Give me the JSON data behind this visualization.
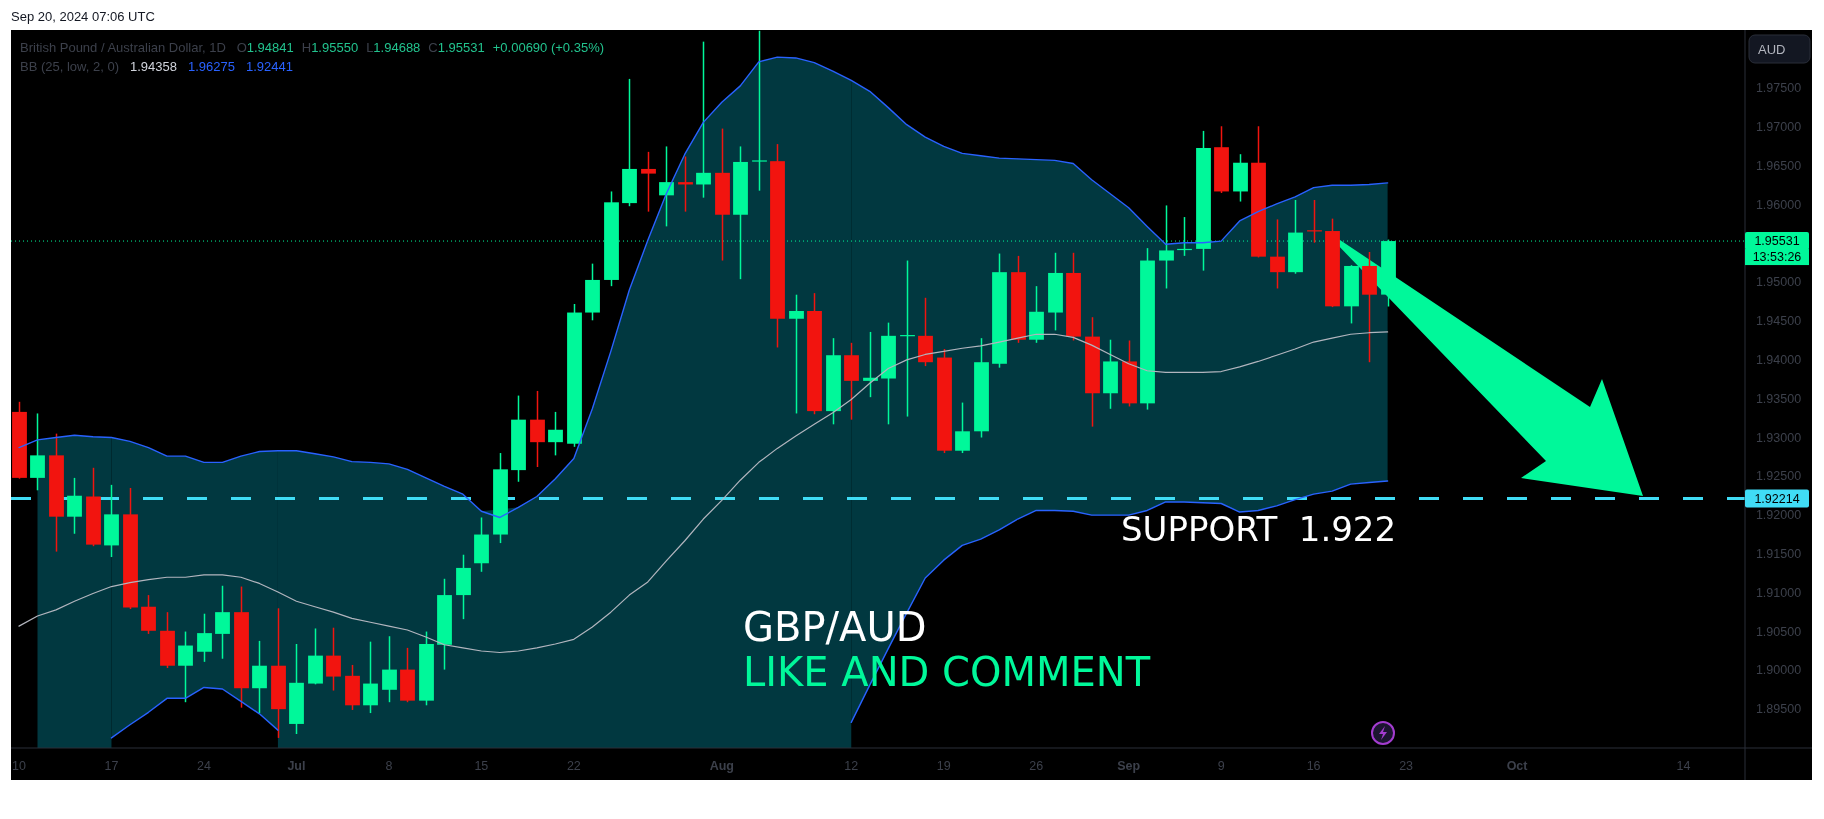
{
  "chart_data": {
    "type": "candlestick",
    "title": "British Pound / Australian Dollar, 1D",
    "annotations": [
      "Sep 20, 2024 07:06 UTC",
      "O1.94841",
      "H1.95550",
      "L1.94688",
      "C1.95531",
      "+0.00690 (+0.35%)",
      "BB (25, low, 2, 0)",
      "1.94358",
      "1.96275",
      "1.92441",
      "AUD",
      "13:53:26",
      "GBP/AUD",
      "LIKE AND COMMENT",
      {
        "text": "SUPPORT  1.922",
        "y": 1.92214
      }
    ],
    "categories": [
      "10",
      null,
      null,
      null,
      null,
      "17",
      null,
      null,
      null,
      null,
      "24",
      null,
      null,
      null,
      null,
      "Jul",
      null,
      null,
      null,
      null,
      "8",
      null,
      null,
      null,
      null,
      "15",
      null,
      null,
      null,
      null,
      "22",
      null,
      null,
      null,
      null,
      null,
      null,
      null,
      "Aug",
      null,
      null,
      null,
      null,
      null,
      null,
      "12",
      null,
      null,
      null,
      null,
      "19",
      null,
      null,
      null,
      null,
      "26",
      null,
      null,
      null,
      null,
      "Sep",
      null,
      null,
      null,
      null,
      "9",
      null,
      null,
      null,
      null,
      "16",
      null,
      null,
      null,
      null,
      "23",
      null,
      null,
      null,
      null,
      null,
      "Oct",
      null,
      null,
      null,
      null,
      null,
      null,
      null,
      null,
      "14",
      null,
      null,
      null
    ],
    "ohlc": [
      [
        1.9333,
        1.9346,
        1.9247,
        1.9248
      ],
      [
        1.9248,
        1.9331,
        1.9232,
        1.9277
      ],
      [
        1.9277,
        1.9305,
        1.9153,
        1.9198
      ],
      [
        1.9198,
        1.9248,
        1.9176,
        1.9225
      ],
      [
        1.9224,
        1.9261,
        1.916,
        1.9162
      ],
      [
        1.9161,
        1.9239,
        1.9146,
        1.9201
      ],
      [
        1.9201,
        1.9235,
        1.9079,
        1.9081
      ],
      [
        1.9082,
        1.9097,
        1.9047,
        1.9051
      ],
      [
        1.9051,
        1.9075,
        1.9003,
        1.9006
      ],
      [
        1.9006,
        1.905,
        1.8959,
        1.9032
      ],
      [
        1.9024,
        1.9073,
        1.9011,
        1.9048
      ],
      [
        1.9047,
        1.9109,
        1.9015,
        1.9075
      ],
      [
        1.9075,
        1.9108,
        1.8952,
        1.8977
      ],
      [
        1.8977,
        1.9038,
        1.8945,
        1.9006
      ],
      [
        1.9006,
        1.908,
        1.8913,
        1.895
      ],
      [
        1.8931,
        1.9034,
        1.8918,
        1.8984
      ],
      [
        1.8983,
        1.9054,
        1.8982,
        1.9019
      ],
      [
        1.9019,
        1.9055,
        1.8974,
        1.8992
      ],
      [
        1.8993,
        1.9007,
        1.8949,
        1.8955
      ],
      [
        1.8955,
        1.9037,
        1.8945,
        1.8983
      ],
      [
        1.8975,
        1.9044,
        1.8959,
        1.9001
      ],
      [
        1.9001,
        1.9029,
        1.8959,
        1.8961
      ],
      [
        1.8961,
        1.905,
        1.8955,
        1.9034
      ],
      [
        1.9033,
        1.9118,
        1.9001,
        1.9097
      ],
      [
        1.9097,
        1.9149,
        1.9066,
        1.9132
      ],
      [
        1.9138,
        1.9197,
        1.9127,
        1.9175
      ],
      [
        1.9175,
        1.928,
        1.9164,
        1.9259
      ],
      [
        1.9258,
        1.9354,
        1.9243,
        1.9323
      ],
      [
        1.9323,
        1.936,
        1.9262,
        1.9294
      ],
      [
        1.9294,
        1.9333,
        1.9277,
        1.931
      ],
      [
        1.9292,
        1.9472,
        1.9288,
        1.9461
      ],
      [
        1.9461,
        1.9524,
        1.9451,
        1.9503
      ],
      [
        1.9503,
        1.9617,
        1.9495,
        1.9603
      ],
      [
        1.9602,
        1.9762,
        1.9598,
        1.9646
      ],
      [
        1.9646,
        1.9668,
        1.9591,
        1.964
      ],
      [
        1.9612,
        1.9675,
        1.9572,
        1.9629
      ],
      [
        1.9629,
        1.9662,
        1.9591,
        1.9626
      ],
      [
        1.9626,
        1.981,
        1.9609,
        1.9641
      ],
      [
        1.9641,
        1.9698,
        1.9528,
        1.9587
      ],
      [
        1.9587,
        1.9675,
        1.9504,
        1.9655
      ],
      [
        1.9656,
        1.9824,
        1.9618,
        1.9657
      ],
      [
        1.9656,
        1.9678,
        1.9416,
        1.9453
      ],
      [
        1.9453,
        1.9484,
        1.9331,
        1.9463
      ],
      [
        1.9463,
        1.9486,
        1.933,
        1.9334
      ],
      [
        1.9334,
        1.9428,
        1.9317,
        1.9406
      ],
      [
        1.9406,
        1.9422,
        1.9323,
        1.9373
      ],
      [
        1.9373,
        1.9436,
        1.9352,
        1.9377
      ],
      [
        1.9376,
        1.9448,
        1.9317,
        1.9431
      ],
      [
        1.9431,
        1.9528,
        1.9327,
        1.9432
      ],
      [
        1.9431,
        1.948,
        1.9392,
        1.9397
      ],
      [
        1.9403,
        1.9414,
        1.928,
        1.9283
      ],
      [
        1.9283,
        1.9345,
        1.928,
        1.9308
      ],
      [
        1.9308,
        1.9428,
        1.93,
        1.9397
      ],
      [
        1.9395,
        1.9537,
        1.939,
        1.9513
      ],
      [
        1.9513,
        1.9534,
        1.9422,
        1.9426
      ],
      [
        1.9426,
        1.9495,
        1.9422,
        1.9462
      ],
      [
        1.9461,
        1.9538,
        1.9438,
        1.9512
      ],
      [
        1.9512,
        1.9538,
        1.9425,
        1.943
      ],
      [
        1.943,
        1.9455,
        1.9314,
        1.9357
      ],
      [
        1.9357,
        1.9426,
        1.9337,
        1.9398
      ],
      [
        1.9398,
        1.9425,
        1.934,
        1.9344
      ],
      [
        1.9344,
        1.9544,
        1.9336,
        1.9528
      ],
      [
        1.9528,
        1.9599,
        1.9492,
        1.9541
      ],
      [
        1.9542,
        1.9584,
        1.9534,
        1.9543
      ],
      [
        1.9543,
        1.9695,
        1.9515,
        1.9673
      ],
      [
        1.9674,
        1.9701,
        1.9615,
        1.9617
      ],
      [
        1.9617,
        1.9665,
        1.9604,
        1.9654
      ],
      [
        1.9654,
        1.9701,
        1.9532,
        1.9533
      ],
      [
        1.9533,
        1.9581,
        1.9492,
        1.9513
      ],
      [
        1.9513,
        1.9606,
        1.9511,
        1.9564
      ],
      [
        1.9567,
        1.9606,
        1.9551,
        1.9566
      ],
      [
        1.9566,
        1.9582,
        1.9468,
        1.9469
      ],
      [
        1.9469,
        1.9522,
        1.9447,
        1.9521
      ],
      [
        1.9521,
        1.9539,
        1.9397,
        1.9484
      ],
      [
        1.94841,
        1.9555,
        1.94688,
        1.95531
      ],
      null,
      null,
      null,
      null,
      null,
      null,
      null,
      null,
      null,
      null,
      null,
      null,
      null,
      null,
      null,
      null,
      null,
      null,
      null
    ],
    "colors": [
      "#f2140f",
      "#00f89a",
      "#f2140f",
      "#00f89a",
      "#f2140f",
      "#00f89a",
      "#f2140f",
      "#f2140f",
      "#f2140f",
      "#00f89a",
      "#00f89a",
      "#00f89a",
      "#f2140f",
      "#00f89a",
      "#f2140f",
      "#00f89a",
      "#00f89a",
      "#f2140f",
      "#f2140f",
      "#00f89a",
      "#00f89a",
      "#f2140f",
      "#00f89a",
      "#00f89a",
      "#00f89a",
      "#00f89a",
      "#00f89a",
      "#00f89a",
      "#f2140f",
      "#00f89a",
      "#00f89a",
      "#00f89a",
      "#00f89a",
      "#00f89a",
      "#f2140f",
      "#00f89a",
      "#f2140f",
      "#00f89a",
      "#f2140f",
      "#00f89a",
      "#00f89a",
      "#f2140f",
      "#00f89a",
      "#f2140f",
      "#00f89a",
      "#f2140f",
      "#00f89a",
      "#00f89a",
      "#00f89a",
      "#f2140f",
      "#f2140f",
      "#00f89a",
      "#00f89a",
      "#00f89a",
      "#f2140f",
      "#00f89a",
      "#00f89a",
      "#f2140f",
      "#f2140f",
      "#00f89a",
      "#f2140f",
      "#00f89a",
      "#00f89a",
      "#00f89a",
      "#00f89a",
      "#f2140f",
      "#00f89a",
      "#f2140f",
      "#f2140f",
      "#00f89a",
      "#f2140f",
      "#f2140f",
      "#00f89a",
      "#f2140f",
      "#00f89a",
      null,
      null,
      null,
      null,
      null,
      null,
      null,
      null,
      null,
      null,
      null,
      null,
      null,
      null,
      null,
      null,
      null,
      null,
      null
    ],
    "series": [
      {
        "type": "line",
        "color": "#b2b5be",
        "values": [
          1.9057,
          1.907,
          1.9078,
          1.9089,
          1.9099,
          1.9108,
          1.9113,
          1.9117,
          1.912,
          1.912,
          1.9123,
          1.9123,
          1.912,
          1.9112,
          1.9101,
          1.9089,
          1.9082,
          1.9075,
          1.9067,
          1.9062,
          1.9057,
          1.9052,
          1.9043,
          1.9033,
          1.9029,
          1.9025,
          1.9023,
          1.9025,
          1.9029,
          1.9034,
          1.904,
          1.9056,
          1.9075,
          1.9097,
          1.9114,
          1.9141,
          1.9167,
          1.9195,
          1.9219,
          1.9245,
          1.9268,
          1.9286,
          1.9302,
          1.9317,
          1.9332,
          1.9349,
          1.937,
          1.9389,
          1.94,
          1.9407,
          1.9411,
          1.9415,
          1.9418,
          1.9423,
          1.9428,
          1.9433,
          1.9433,
          1.9429,
          1.9419,
          1.9407,
          1.9395,
          1.9386,
          1.9384,
          1.9384,
          1.9384,
          1.9385,
          1.9391,
          1.9398,
          1.9406,
          1.9414,
          1.9423,
          1.9428,
          1.9433,
          1.9435,
          1.9436,
          null,
          null,
          null,
          null,
          null,
          null,
          null,
          null,
          null,
          null,
          null,
          null,
          null,
          null,
          null,
          null,
          null,
          null,
          null
        ],
        "upper": [
          null,
          null,
          null,
          null,
          null,
          1.93,
          1.9295,
          1.9287,
          1.9276,
          1.9276,
          1.9268,
          1.9268,
          1.9276,
          1.9282,
          1.9283,
          null,
          null,
          null,
          null,
          null,
          null,
          null,
          null,
          null,
          null,
          null,
          null,
          null,
          null,
          null,
          null,
          null,
          null,
          null,
          null,
          null,
          null,
          null,
          null,
          null,
          null,
          null,
          null,
          null,
          null,
          1.976,
          1.9746,
          1.9725,
          1.9703,
          1.9687,
          1.9675,
          1.9666,
          1.9663,
          1.966,
          1.9659,
          1.9658,
          1.9657,
          1.9653,
          1.9632,
          1.9614,
          1.9596,
          1.9572,
          1.9549,
          1.9551,
          1.9551,
          1.9553,
          1.9579,
          1.9591,
          1.9601,
          1.961,
          1.9622,
          1.9625,
          1.9625,
          1.9626,
          1.9628,
          null,
          null,
          null,
          null,
          null,
          null,
          null,
          null,
          null,
          null,
          null,
          null,
          null,
          null,
          null,
          null,
          null,
          null,
          null
        ],
        "lower": [
          null,
          null,
          null,
          null,
          null,
          1.8913,
          1.893,
          1.8946,
          1.8964,
          1.8964,
          1.8978,
          1.8976,
          1.896,
          1.8944,
          1.8923,
          null,
          null,
          null,
          null,
          null,
          null,
          null,
          null,
          null,
          null,
          null,
          null,
          null,
          null,
          null,
          null,
          null,
          null,
          null,
          null,
          null,
          null,
          null,
          null,
          null,
          null,
          null,
          null,
          null,
          null,
          1.8933,
          1.8981,
          1.9028,
          1.9074,
          1.9119,
          1.9142,
          1.9161,
          1.9169,
          1.9181,
          1.9195,
          1.9206,
          1.9206,
          1.9205,
          1.92,
          1.92,
          1.92,
          1.9206,
          1.9217,
          1.9217,
          1.9216,
          1.9215,
          1.9204,
          1.9206,
          1.9212,
          1.922,
          1.9227,
          1.9231,
          1.924,
          1.9242,
          1.9244,
          null,
          null,
          null,
          null,
          null,
          null,
          null,
          null,
          null,
          null,
          null,
          null,
          null,
          null,
          null,
          null,
          null,
          null,
          null
        ]
      },
      {
        "type": "area",
        "color": "#013840",
        "values": [
          null,
          1.9297,
          1.93,
          1.9303,
          1.9301,
          1.93,
          null,
          null,
          null,
          null,
          null,
          null,
          null,
          null,
          1.9283,
          1.9283,
          1.9279,
          1.9275,
          1.9269,
          1.9268,
          1.9266,
          1.9259,
          1.9248,
          1.9237,
          1.9227,
          1.9205,
          null,
          1.921,
          1.9224,
          1.9247,
          1.9273,
          1.9337,
          1.9411,
          1.949,
          1.9554,
          1.9614,
          1.9665,
          1.9706,
          1.9732,
          1.9753,
          1.9784,
          1.979,
          1.9789,
          1.9783,
          1.9772,
          1.976,
          null,
          null,
          null,
          null,
          null,
          null,
          null,
          null,
          null,
          null,
          null,
          null,
          null,
          null,
          null,
          null,
          null,
          null,
          null,
          null,
          null,
          null,
          null,
          null,
          null,
          null,
          null,
          null,
          null,
          null,
          null,
          null,
          null,
          null,
          null,
          null,
          null,
          null,
          null,
          null,
          null,
          null,
          null,
          null,
          null,
          null,
          null,
          null
        ]
      },
      {
        "type": "line",
        "color": "#2962ff",
        "values": [
          1.9287,
          1.9297,
          1.93,
          1.9303,
          1.9301,
          1.93,
          1.9295,
          1.9287,
          1.9276,
          1.9276,
          1.9268,
          1.9268,
          1.9276,
          1.9282,
          1.9283,
          1.9283,
          1.9279,
          1.9275,
          1.9269,
          1.9268,
          1.9266,
          1.9259,
          1.9248,
          1.9237,
          1.9227,
          1.9205,
          1.9197,
          1.921,
          1.9224,
          1.9247,
          1.9273,
          1.9337,
          1.9411,
          1.949,
          1.9554,
          1.9614,
          1.9665,
          1.9706,
          1.9732,
          1.9753,
          1.9784,
          1.979,
          1.9789,
          1.9783,
          1.9772,
          1.976,
          1.9746,
          1.9725,
          1.9703,
          1.9687,
          1.9675,
          1.9666,
          1.9663,
          1.966,
          1.9659,
          1.9658,
          1.9657,
          1.9653,
          1.9632,
          1.9614,
          1.9596,
          1.9572,
          1.9549,
          1.9551,
          1.9551,
          1.9553,
          1.9579,
          1.9591,
          1.9601,
          1.961,
          1.9622,
          1.9625,
          1.9625,
          1.9626,
          1.9628,
          null,
          null,
          null,
          null,
          null,
          null,
          null,
          null,
          null,
          null,
          null,
          null,
          null,
          null,
          null,
          null,
          null,
          null,
          null
        ]
      },
      {
        "type": "line",
        "color": "#2962ff",
        "values": [
          null,
          null,
          null,
          null,
          null,
          1.8913,
          1.893,
          1.8946,
          1.8964,
          1.8964,
          1.8978,
          1.8976,
          1.896,
          1.8944,
          1.8923,
          null,
          null,
          null,
          null,
          null,
          null,
          null,
          null,
          null,
          null,
          null,
          null,
          null,
          null,
          null,
          null,
          null,
          null,
          null,
          null,
          null,
          null,
          null,
          null,
          null,
          null,
          null,
          null,
          null,
          null,
          1.8933,
          1.8981,
          1.9028,
          1.9074,
          1.9119,
          1.9142,
          1.9161,
          1.9169,
          1.9181,
          1.9195,
          1.9206,
          1.9206,
          1.9205,
          1.92,
          1.92,
          1.92,
          1.9206,
          1.9217,
          1.9217,
          1.9216,
          1.9215,
          1.9204,
          1.9206,
          1.9212,
          1.922,
          1.9227,
          1.9231,
          1.924,
          1.9242,
          1.9244,
          null,
          null,
          null,
          null,
          null,
          null,
          null,
          null,
          null,
          null,
          null,
          null,
          null,
          null,
          null,
          null,
          null,
          null,
          null
        ]
      }
    ],
    "ylim": [
      1.89,
      1.9825
    ],
    "yticks": [
      {
        "value": 1.895,
        "label": "1.89500"
      },
      {
        "value": 1.9,
        "label": "1.90000"
      },
      {
        "value": 1.905,
        "label": "1.90500"
      },
      {
        "value": 1.91,
        "label": "1.91000"
      },
      {
        "value": 1.915,
        "label": "1.91500"
      },
      {
        "value": 1.92,
        "label": "1.92000"
      },
      {
        "value": 1.925,
        "label": "1.92500"
      },
      {
        "value": 1.93,
        "label": "1.93000"
      },
      {
        "value": 1.935,
        "label": "1.93500"
      },
      {
        "value": 1.94,
        "label": "1.94000"
      },
      {
        "value": 1.945,
        "label": "1.94500"
      },
      {
        "value": 1.95,
        "label": "1.95000"
      },
      {
        "value": 1.96,
        "label": "1.96000"
      },
      {
        "value": 1.965,
        "label": "1.96500"
      },
      {
        "value": 1.97,
        "label": "1.97000"
      },
      {
        "value": 1.975,
        "label": "1.97500"
      }
    ],
    "ref_lines": [
      {
        "axis": "y",
        "value": 1.95531,
        "label": "1.95531",
        "color": "#00f89a",
        "line_style": "dotted"
      },
      {
        "axis": "y",
        "value": 1.92214,
        "label": "1.92214",
        "color": "#40dcf5",
        "line_style": "dashed"
      }
    ]
  }
}
